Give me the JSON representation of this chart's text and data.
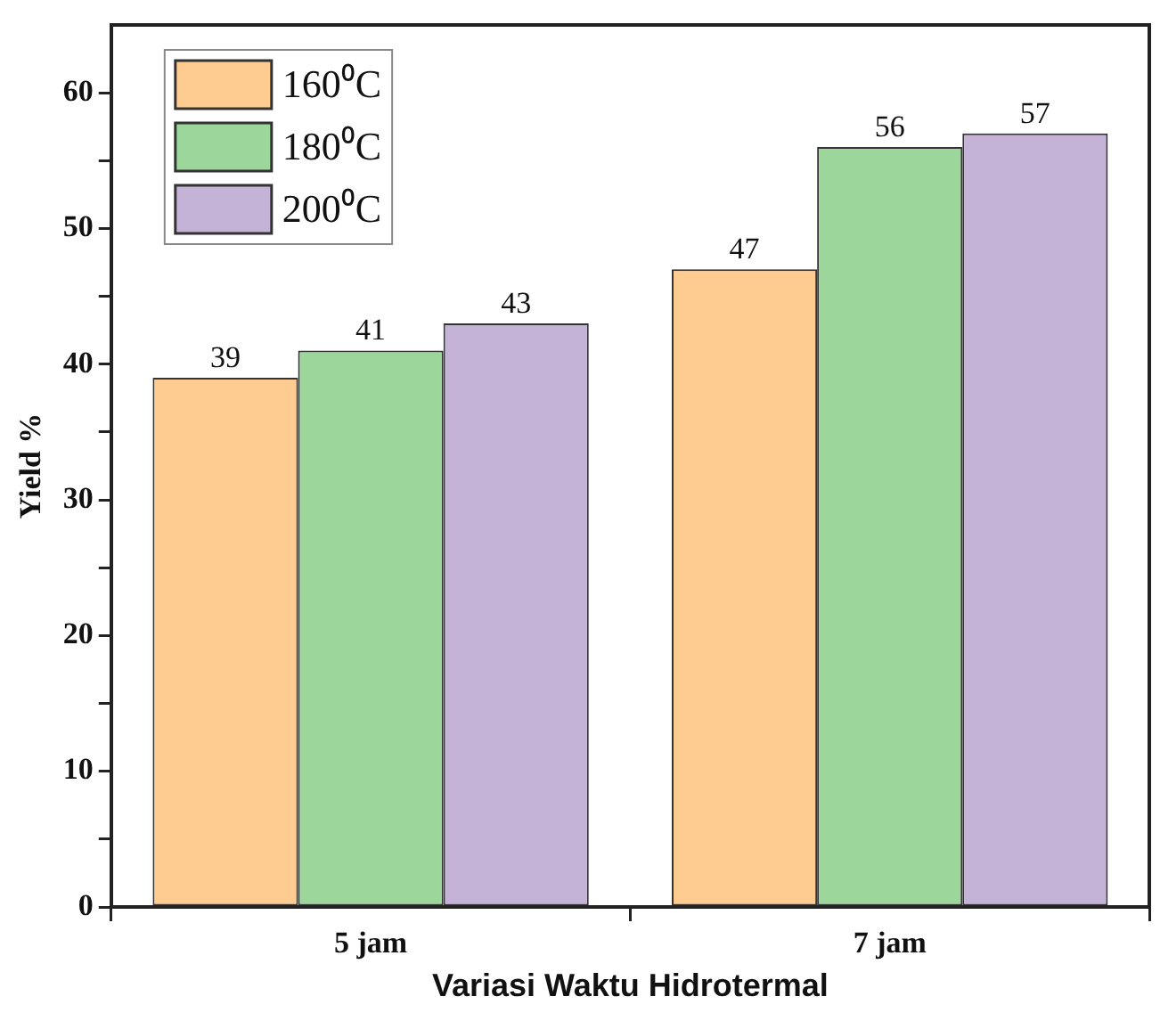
{
  "chart_data": {
    "type": "bar",
    "xlabel": "Variasi Waktu Hidrotermal",
    "ylabel": "Yield %",
    "categories": [
      "5 jam",
      "7 jam"
    ],
    "series": [
      {
        "name": "160⁰C",
        "color": "#fecb91",
        "values": [
          39,
          47
        ]
      },
      {
        "name": "180⁰C",
        "color": "#9dd69a",
        "values": [
          41,
          56
        ]
      },
      {
        "name": "200⁰C",
        "color": "#c5b3d7",
        "values": [
          43,
          57
        ]
      }
    ],
    "ylim": [
      0,
      65
    ],
    "yticks": [
      0,
      {
        "value": 5,
        "label": null
      },
      10,
      {
        "value": 15,
        "label": null
      },
      20,
      {
        "value": 25,
        "label": null
      },
      30,
      {
        "value": 35,
        "label": null
      },
      40,
      {
        "value": 45,
        "label": null
      },
      50,
      {
        "value": 55,
        "label": null
      },
      60
    ],
    "grid": false,
    "legend": "top left",
    "data_labels": true
  }
}
